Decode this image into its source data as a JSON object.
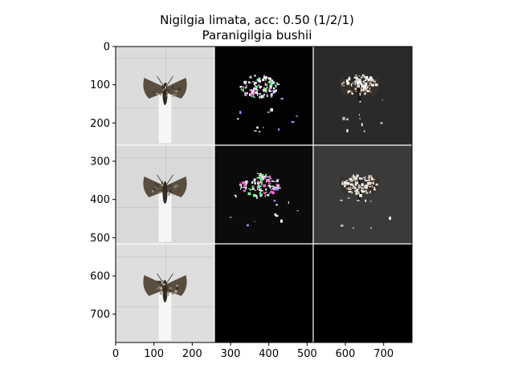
{
  "chart_data": {
    "type": "image_grid",
    "title_line1": "Nigilgia limata, acc: 0.50 (1/2/1)",
    "title_line2": "Paranigilgia bushii",
    "xlim": [
      0,
      774
    ],
    "ylim": [
      774,
      0
    ],
    "x_ticks": [
      0,
      100,
      200,
      300,
      400,
      500,
      600,
      700
    ],
    "y_ticks": [
      0,
      100,
      200,
      300,
      400,
      500,
      600,
      700
    ],
    "grid_rows": 3,
    "grid_cols": 3,
    "separators_x": [
      258,
      516
    ],
    "separators_y": [
      258,
      516
    ],
    "panels": [
      {
        "row": 0,
        "col": 0,
        "kind": "photo",
        "bg": "#dcdcdc"
      },
      {
        "row": 0,
        "col": 1,
        "kind": "saliency",
        "bg": "#020202"
      },
      {
        "row": 0,
        "col": 2,
        "kind": "overlay",
        "bg": "#2a2a2a"
      },
      {
        "row": 1,
        "col": 0,
        "kind": "photo",
        "bg": "#d9d9d9"
      },
      {
        "row": 1,
        "col": 1,
        "kind": "saliency",
        "bg": "#0b0b0b"
      },
      {
        "row": 1,
        "col": 2,
        "kind": "overlay",
        "bg": "#3a3a3a"
      },
      {
        "row": 2,
        "col": 0,
        "kind": "photo",
        "bg": "#dedede"
      },
      {
        "row": 2,
        "col": 1,
        "kind": "blank",
        "bg": "#000000"
      },
      {
        "row": 2,
        "col": 2,
        "kind": "blank",
        "bg": "#000000"
      }
    ]
  }
}
